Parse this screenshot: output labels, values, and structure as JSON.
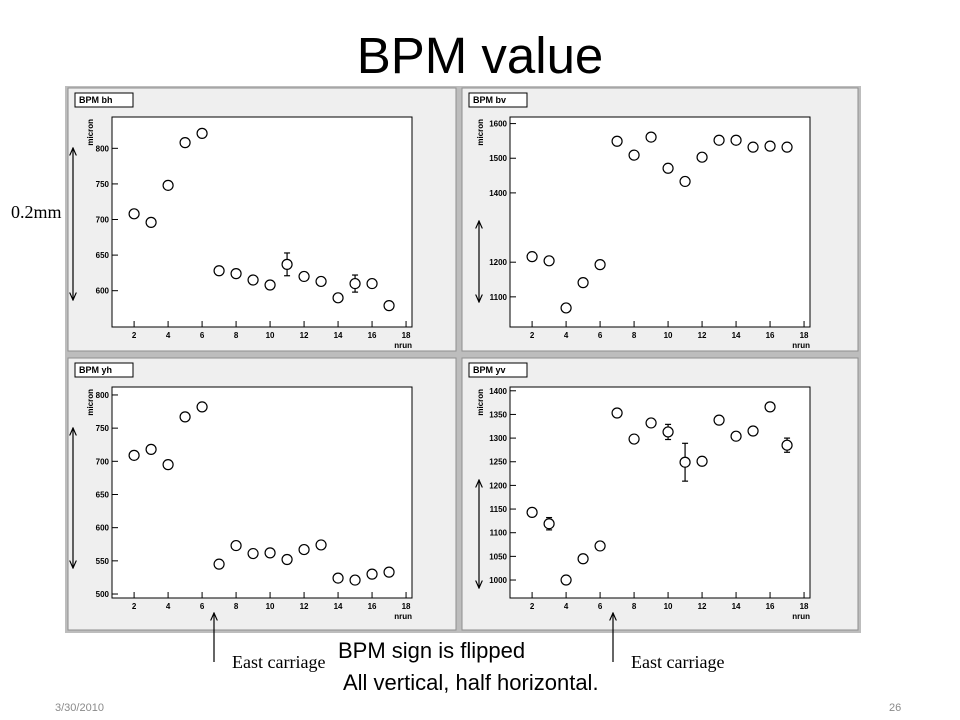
{
  "slide": {
    "title": "BPM value",
    "scale_label": "0.2mm",
    "arrow_label_left": "East carriage",
    "arrow_label_right": "East carriage",
    "note_line1": "BPM sign is flipped",
    "note_line2": "All vertical, half horizontal.",
    "footer_date": "3/30/2010",
    "page_number": "26"
  },
  "chart_data": [
    {
      "type": "scatter",
      "title": "BPM bh",
      "xlabel": "nrun",
      "ylabel": "micron",
      "xlim": [
        0.7,
        18.35
      ],
      "ylim": [
        549,
        844
      ],
      "xticks": [
        2,
        4,
        6,
        8,
        10,
        12,
        14,
        16,
        18
      ],
      "yticks": [
        600,
        650,
        700,
        750,
        800
      ],
      "x": [
        2,
        3,
        4,
        5,
        6,
        7,
        8,
        9,
        10,
        11,
        12,
        13,
        14,
        15,
        16,
        17
      ],
      "y": [
        708,
        696,
        748,
        808,
        821,
        628,
        624,
        615,
        608,
        637,
        620,
        613,
        590,
        610,
        610,
        579
      ],
      "yerr": [
        0,
        0,
        0,
        0,
        0,
        0,
        0,
        0,
        0,
        16,
        0,
        0,
        0,
        12,
        0,
        0
      ]
    },
    {
      "type": "scatter",
      "title": "BPM bv",
      "xlabel": "nrun",
      "ylabel": "micron",
      "xlim": [
        0.7,
        18.35
      ],
      "ylim": [
        1013,
        1619
      ],
      "xticks": [
        2,
        4,
        6,
        8,
        10,
        12,
        14,
        16,
        18
      ],
      "yticks": [
        1100,
        1200,
        1400,
        1500,
        1600
      ],
      "x": [
        2,
        3,
        4,
        5,
        6,
        7,
        8,
        9,
        10,
        11,
        12,
        13,
        14,
        15,
        16,
        17
      ],
      "y": [
        1216,
        1204,
        1068,
        1141,
        1193,
        1549,
        1509,
        1561,
        1471,
        1433,
        1503,
        1552,
        1552,
        1532,
        1535,
        1532
      ],
      "yerr": [
        0,
        0,
        0,
        0,
        0,
        0,
        0,
        0,
        0,
        0,
        0,
        0,
        0,
        0,
        0,
        0
      ]
    },
    {
      "type": "scatter",
      "title": "BPM yh",
      "xlabel": "nrun",
      "ylabel": "micron",
      "xlim": [
        0.7,
        18.35
      ],
      "ylim": [
        494,
        812
      ],
      "xticks": [
        2,
        4,
        6,
        8,
        10,
        12,
        14,
        16,
        18
      ],
      "yticks": [
        500,
        550,
        600,
        650,
        700,
        750,
        800
      ],
      "x": [
        2,
        3,
        4,
        5,
        6,
        7,
        8,
        9,
        10,
        11,
        12,
        13,
        14,
        15,
        16,
        17
      ],
      "y": [
        709,
        718,
        695,
        767,
        782,
        545,
        573,
        561,
        562,
        552,
        567,
        574,
        524,
        521,
        530,
        533
      ],
      "yerr": [
        0,
        0,
        0,
        0,
        0,
        0,
        0,
        0,
        0,
        0,
        0,
        0,
        0,
        0,
        0,
        0
      ]
    },
    {
      "type": "scatter",
      "title": "BPM yv",
      "xlabel": "nrun",
      "ylabel": "micron",
      "xlim": [
        0.7,
        18.35
      ],
      "ylim": [
        962,
        1408
      ],
      "xticks": [
        2,
        4,
        6,
        8,
        10,
        12,
        14,
        16,
        18
      ],
      "yticks": [
        1000,
        1050,
        1100,
        1150,
        1200,
        1250,
        1300,
        1350,
        1400
      ],
      "x": [
        2,
        3,
        4,
        5,
        6,
        7,
        8,
        9,
        10,
        11,
        12,
        13,
        14,
        15,
        16,
        17
      ],
      "y": [
        1143,
        1119,
        1000,
        1045,
        1072,
        1353,
        1298,
        1332,
        1313,
        1249,
        1251,
        1338,
        1304,
        1315,
        1366,
        1285
      ],
      "yerr": [
        0,
        13,
        0,
        0,
        0,
        0,
        0,
        0,
        16,
        40,
        0,
        0,
        0,
        0,
        0,
        15
      ]
    }
  ]
}
